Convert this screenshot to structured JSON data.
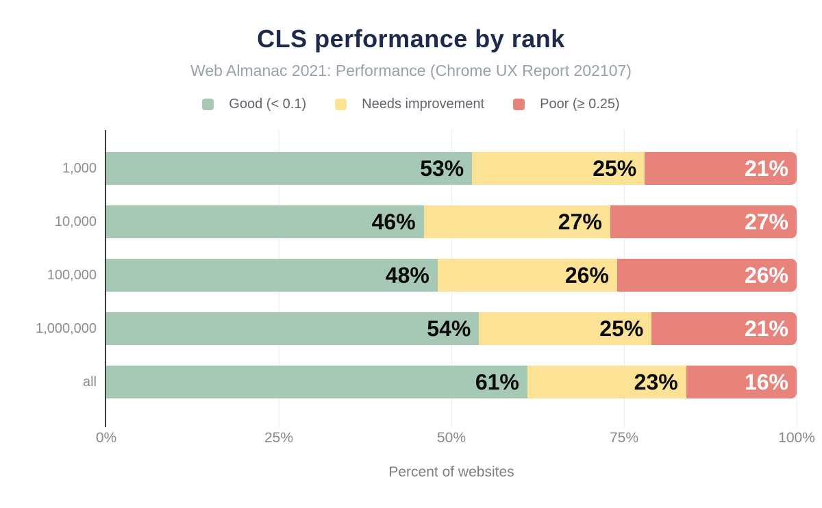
{
  "title": "CLS performance by rank",
  "subtitle": "Web Almanac 2021: Performance (Chrome UX Report 202107)",
  "chart_data": {
    "type": "bar",
    "orientation": "horizontal",
    "stacked": true,
    "title": "CLS performance by rank",
    "subtitle": "Web Almanac 2021: Performance (Chrome UX Report 202107)",
    "categories": [
      "1,000",
      "10,000",
      "100,000",
      "1,000,000",
      "all"
    ],
    "series": [
      {
        "name": "Good (< 0.1)",
        "color": "#a5c9b5",
        "label_color": "#0a0a0a",
        "values": [
          53,
          46,
          48,
          54,
          61
        ]
      },
      {
        "name": "Needs improvement",
        "color": "#fce294",
        "label_color": "#0a0a0a",
        "values": [
          25,
          27,
          26,
          25,
          23
        ]
      },
      {
        "name": "Poor (≥ 0.25)",
        "color": "#e7837b",
        "label_color": "#ffffff",
        "values": [
          21,
          27,
          26,
          21,
          16
        ]
      }
    ],
    "value_suffix": "%",
    "xlabel": "Percent of websites",
    "ylabel": "",
    "xlim": [
      0,
      100
    ],
    "x_ticks": [
      {
        "label": "0%",
        "pos": 0
      },
      {
        "label": "25%",
        "pos": 25
      },
      {
        "label": "50%",
        "pos": 50
      },
      {
        "label": "75%",
        "pos": 75
      },
      {
        "label": "100%",
        "pos": 100
      }
    ],
    "grid": "vertical",
    "legend_position": "top"
  }
}
